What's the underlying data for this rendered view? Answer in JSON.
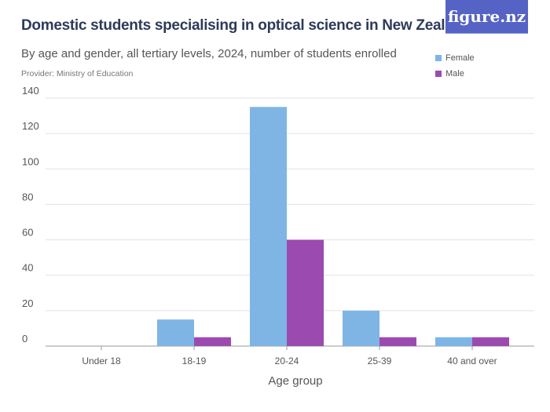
{
  "title": "Domestic students specialising in optical science in New Zealand",
  "subtitle": "By age and gender, all tertiary levels, 2024, number of students enrolled",
  "provider": "Provider: Ministry of Education",
  "logo": "figure.nz",
  "chart_data": {
    "type": "bar",
    "title": "Domestic students specialising in optical science in New Zealand",
    "xlabel": "Age group",
    "ylabel": "",
    "ylim": [
      0,
      140
    ],
    "yticks": [
      0,
      20,
      40,
      60,
      80,
      100,
      120,
      140
    ],
    "grid": true,
    "legend_position": "top-right",
    "categories": [
      "Under 18",
      "18-19",
      "20-24",
      "25-39",
      "40 and over"
    ],
    "series": [
      {
        "name": "Female",
        "color": "#7eb5e5",
        "values": [
          0,
          15,
          135,
          20,
          5
        ]
      },
      {
        "name": "Male",
        "color": "#9b4bb0",
        "values": [
          0,
          5,
          60,
          5,
          5
        ]
      }
    ]
  }
}
